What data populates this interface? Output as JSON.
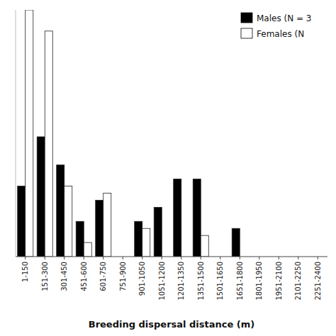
{
  "chart_data": {
    "type": "bar",
    "xlabel": "Breeding dispersal distance (m)",
    "categories": [
      "1-150",
      "151-300",
      "301-450",
      "451-600",
      "601-750",
      "751-900",
      "901-1050",
      "1051-1200",
      "1201-1350",
      "1351-1500",
      "1501-1650",
      "1651-1800",
      "1801-1950",
      "1951-2100",
      "2101-2250",
      "2251-2400"
    ],
    "series": [
      {
        "name": "Males (N = 3",
        "color": "#000000",
        "values": [
          10,
          17,
          13,
          5,
          8,
          0,
          5,
          7,
          11,
          11,
          0,
          4,
          0,
          0,
          0,
          0
        ]
      },
      {
        "name": "Females (N",
        "color": "#ffffff",
        "values": [
          35,
          32,
          10,
          2,
          9,
          0,
          4,
          0,
          0,
          3,
          0,
          0,
          0,
          0,
          0,
          0
        ]
      }
    ],
    "ylim": [
      0,
      35
    ],
    "tick_labels": "x",
    "grid": false,
    "legend": "upper right"
  }
}
